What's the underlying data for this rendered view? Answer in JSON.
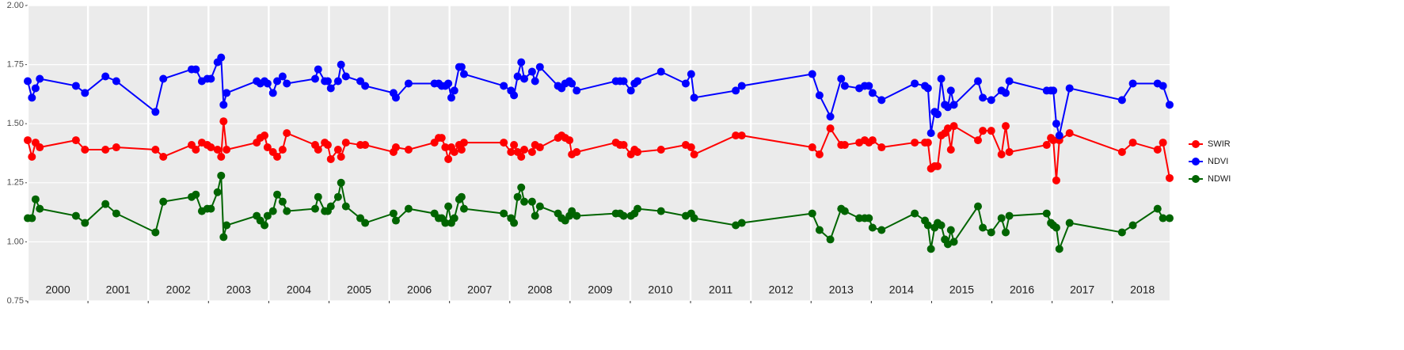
{
  "chart_data": {
    "type": "line",
    "x": [
      2000.0,
      2000.07,
      2000.13,
      2000.2,
      2000.8,
      2000.95,
      2001.29,
      2001.47,
      2002.12,
      2002.25,
      2002.72,
      2002.79,
      2002.89,
      2002.98,
      2003.04,
      2003.15,
      2003.21,
      2003.25,
      2003.3,
      2003.8,
      2003.86,
      2003.93,
      2003.98,
      2004.07,
      2004.14,
      2004.23,
      2004.3,
      2004.77,
      2004.82,
      2004.93,
      2004.98,
      2005.03,
      2005.15,
      2005.2,
      2005.28,
      2005.52,
      2005.6,
      2006.07,
      2006.11,
      2006.32,
      2006.75,
      2006.82,
      2006.87,
      2006.93,
      2006.98,
      2007.03,
      2007.08,
      2007.16,
      2007.2,
      2007.24,
      2007.9,
      2008.02,
      2008.07,
      2008.13,
      2008.19,
      2008.24,
      2008.37,
      2008.42,
      2008.5,
      2008.8,
      2008.86,
      2008.92,
      2008.99,
      2009.03,
      2009.11,
      2009.76,
      2009.83,
      2009.89,
      2010.01,
      2010.07,
      2010.12,
      2010.51,
      2010.92,
      2011.01,
      2011.06,
      2011.75,
      2011.85,
      2013.02,
      2013.14,
      2013.32,
      2013.5,
      2013.56,
      2013.8,
      2013.89,
      2013.96,
      2014.02,
      2014.17,
      2014.72,
      2014.89,
      2014.94,
      2014.99,
      2015.05,
      2015.1,
      2015.16,
      2015.22,
      2015.27,
      2015.32,
      2015.37,
      2015.77,
      2015.85,
      2015.99,
      2016.16,
      2016.23,
      2016.29,
      2016.91,
      2016.98,
      2017.02,
      2017.07,
      2017.12,
      2017.29,
      2018.16,
      2018.34,
      2018.75,
      2018.84,
      2018.95
    ],
    "series": [
      {
        "name": "SWIR",
        "color": "#ff0000",
        "values": [
          1.43,
          1.36,
          1.42,
          1.4,
          1.43,
          1.39,
          1.39,
          1.4,
          1.39,
          1.36,
          1.41,
          1.39,
          1.42,
          1.41,
          1.4,
          1.39,
          1.36,
          1.51,
          1.39,
          1.42,
          1.44,
          1.45,
          1.4,
          1.38,
          1.36,
          1.39,
          1.46,
          1.41,
          1.39,
          1.42,
          1.41,
          1.35,
          1.39,
          1.36,
          1.42,
          1.41,
          1.41,
          1.38,
          1.4,
          1.39,
          1.42,
          1.44,
          1.44,
          1.4,
          1.35,
          1.4,
          1.38,
          1.41,
          1.39,
          1.42,
          1.42,
          1.38,
          1.41,
          1.38,
          1.36,
          1.39,
          1.38,
          1.41,
          1.4,
          1.44,
          1.45,
          1.44,
          1.43,
          1.37,
          1.38,
          1.42,
          1.41,
          1.41,
          1.37,
          1.39,
          1.38,
          1.39,
          1.41,
          1.4,
          1.37,
          1.45,
          1.45,
          1.4,
          1.37,
          1.48,
          1.41,
          1.41,
          1.42,
          1.43,
          1.42,
          1.43,
          1.4,
          1.42,
          1.42,
          1.42,
          1.31,
          1.32,
          1.32,
          1.45,
          1.46,
          1.48,
          1.39,
          1.49,
          1.43,
          1.47,
          1.47,
          1.37,
          1.49,
          1.38,
          1.41,
          1.44,
          1.43,
          1.26,
          1.43,
          1.46,
          1.38,
          1.42,
          1.39,
          1.42,
          1.27
        ]
      },
      {
        "name": "NDVI",
        "color": "#0000ff",
        "values": [
          1.68,
          1.61,
          1.65,
          1.69,
          1.66,
          1.63,
          1.7,
          1.68,
          1.55,
          1.69,
          1.73,
          1.73,
          1.68,
          1.69,
          1.69,
          1.76,
          1.78,
          1.58,
          1.63,
          1.68,
          1.67,
          1.68,
          1.67,
          1.63,
          1.68,
          1.7,
          1.67,
          1.69,
          1.73,
          1.68,
          1.68,
          1.65,
          1.68,
          1.75,
          1.7,
          1.68,
          1.66,
          1.63,
          1.61,
          1.67,
          1.67,
          1.67,
          1.66,
          1.66,
          1.67,
          1.61,
          1.64,
          1.74,
          1.74,
          1.71,
          1.66,
          1.64,
          1.62,
          1.7,
          1.76,
          1.69,
          1.72,
          1.68,
          1.74,
          1.66,
          1.65,
          1.67,
          1.68,
          1.67,
          1.64,
          1.68,
          1.68,
          1.68,
          1.64,
          1.67,
          1.68,
          1.72,
          1.67,
          1.71,
          1.61,
          1.64,
          1.66,
          1.71,
          1.62,
          1.53,
          1.69,
          1.66,
          1.65,
          1.66,
          1.66,
          1.63,
          1.6,
          1.67,
          1.66,
          1.65,
          1.46,
          1.55,
          1.54,
          1.69,
          1.58,
          1.57,
          1.64,
          1.58,
          1.68,
          1.61,
          1.6,
          1.64,
          1.63,
          1.68,
          1.64,
          1.64,
          1.64,
          1.5,
          1.45,
          1.65,
          1.6,
          1.67,
          1.67,
          1.66,
          1.58
        ]
      },
      {
        "name": "NDWI",
        "color": "#006400",
        "values": [
          1.1,
          1.1,
          1.18,
          1.14,
          1.11,
          1.08,
          1.16,
          1.12,
          1.04,
          1.17,
          1.19,
          1.2,
          1.13,
          1.14,
          1.14,
          1.21,
          1.28,
          1.02,
          1.07,
          1.11,
          1.09,
          1.07,
          1.11,
          1.13,
          1.2,
          1.17,
          1.13,
          1.14,
          1.19,
          1.13,
          1.13,
          1.15,
          1.19,
          1.25,
          1.15,
          1.1,
          1.08,
          1.12,
          1.09,
          1.14,
          1.12,
          1.1,
          1.1,
          1.08,
          1.15,
          1.08,
          1.1,
          1.18,
          1.19,
          1.14,
          1.12,
          1.1,
          1.08,
          1.19,
          1.23,
          1.17,
          1.17,
          1.11,
          1.15,
          1.12,
          1.1,
          1.09,
          1.11,
          1.13,
          1.11,
          1.12,
          1.12,
          1.11,
          1.11,
          1.12,
          1.14,
          1.13,
          1.11,
          1.12,
          1.1,
          1.07,
          1.08,
          1.12,
          1.05,
          1.01,
          1.14,
          1.13,
          1.1,
          1.1,
          1.1,
          1.06,
          1.05,
          1.12,
          1.09,
          1.07,
          0.97,
          1.06,
          1.08,
          1.07,
          1.01,
          0.99,
          1.05,
          1.0,
          1.15,
          1.06,
          1.04,
          1.1,
          1.04,
          1.11,
          1.12,
          1.08,
          1.07,
          1.06,
          0.97,
          1.08,
          1.04,
          1.07,
          1.14,
          1.1,
          1.1
        ]
      }
    ],
    "xlim": [
      2000,
      2018.95
    ],
    "xticks": [
      2000,
      2001,
      2002,
      2003,
      2004,
      2005,
      2006,
      2007,
      2008,
      2009,
      2010,
      2011,
      2012,
      2013,
      2014,
      2015,
      2016,
      2017,
      2018
    ],
    "ylim": [
      0.75,
      2.0
    ],
    "yticks": [
      {
        "value": 0.75,
        "label": "0.75"
      },
      {
        "value": 1.0,
        "label": "1.00"
      },
      {
        "value": 1.25,
        "label": "1.25"
      },
      {
        "value": 1.5,
        "label": "1.50"
      },
      {
        "value": 1.75,
        "label": "1.75"
      },
      {
        "value": 2.0,
        "label": "2.00"
      }
    ],
    "grid": true,
    "legend": "right"
  }
}
